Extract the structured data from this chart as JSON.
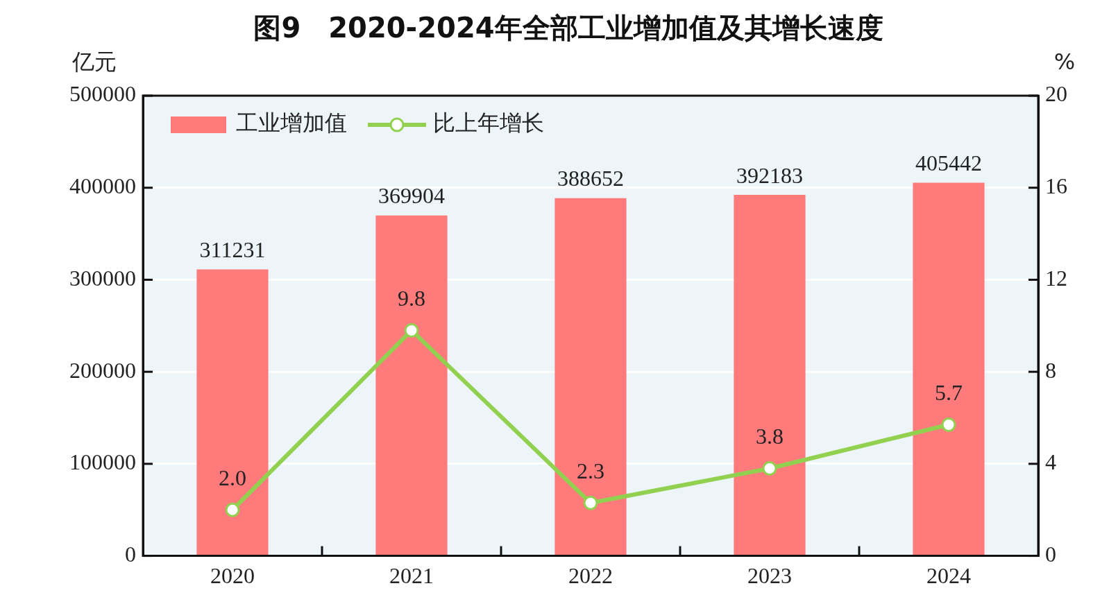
{
  "chart_data": {
    "type": "bar",
    "title": "图9　2020-2024年全部工业增加值及其增长速度",
    "ylabel": "亿元",
    "y2label": "%",
    "categories": [
      "2020",
      "2021",
      "2022",
      "2023",
      "2024"
    ],
    "series": [
      {
        "name": "工业增加值",
        "color": "#ff7b7b",
        "values": [
          311231,
          369904,
          388652,
          392183,
          405442
        ],
        "value_labels": [
          "311231",
          "369904",
          "388652",
          "392183",
          "405442"
        ]
      },
      {
        "name": "比上年增长",
        "type": "line",
        "axis": "y2",
        "color": "#92d050",
        "values": [
          2.0,
          9.8,
          2.3,
          3.8,
          5.7
        ],
        "value_labels": [
          "2.0",
          "9.8",
          "2.3",
          "3.8",
          "5.7"
        ],
        "marker": "circle",
        "line_style": "solid"
      }
    ],
    "ylim": [
      0,
      500000
    ],
    "yticks": [
      0,
      100000,
      200000,
      300000,
      400000,
      500000
    ],
    "y2lim": [
      0,
      20
    ],
    "y2ticks": [
      0,
      4,
      8,
      12,
      16,
      20
    ],
    "grid": "y",
    "legend": "top left"
  }
}
